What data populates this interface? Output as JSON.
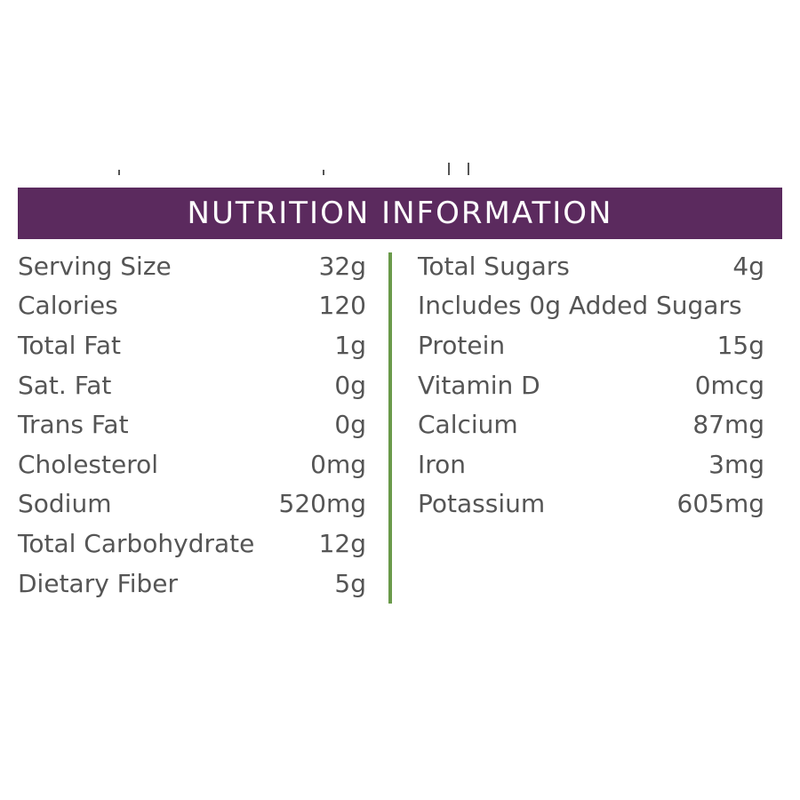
{
  "header": {
    "title": "NUTRITION INFORMATION",
    "background_color": "#5b2a5e",
    "text_color": "#ffffff"
  },
  "divider_color": "#6a9a4a",
  "text_color": "#555555",
  "left_column": [
    {
      "label": "Serving Size",
      "value": "32g"
    },
    {
      "label": "Calories",
      "value": "120"
    },
    {
      "label": "Total Fat",
      "value": "1g"
    },
    {
      "label": "Sat. Fat",
      "value": "0g"
    },
    {
      "label": "Trans Fat",
      "value": "0g"
    },
    {
      "label": "Cholesterol",
      "value": "0mg"
    },
    {
      "label": "Sodium",
      "value": "520mg"
    },
    {
      "label": "Total Carbohydrate",
      "value": "12g"
    },
    {
      "label": "Dietary Fiber",
      "value": "5g"
    }
  ],
  "right_column": [
    {
      "label": "Total Sugars",
      "value": "4g"
    },
    {
      "label": "Includes 0g Added Sugars",
      "value": ""
    },
    {
      "label": "Protein",
      "value": "15g"
    },
    {
      "label": "Vitamin D",
      "value": "0mcg"
    },
    {
      "label": "Calcium",
      "value": "87mg"
    },
    {
      "label": "Iron",
      "value": "3mg"
    },
    {
      "label": "Potassium",
      "value": "605mg"
    }
  ]
}
